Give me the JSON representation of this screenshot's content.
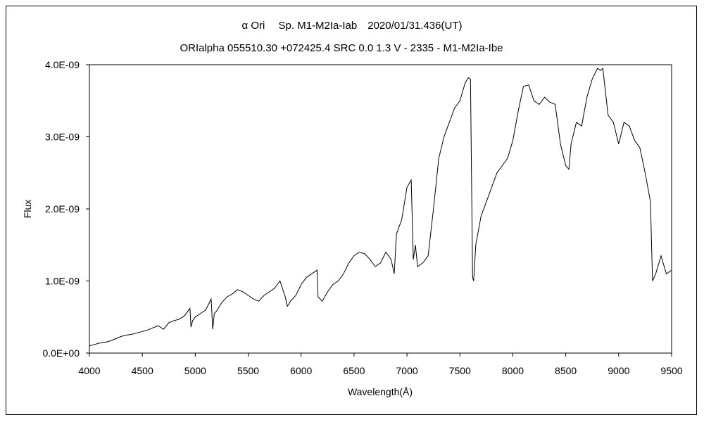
{
  "chart_data": {
    "type": "line",
    "title": "α Ori　 Sp. M1-M2Ia-Iab　2020/01/31.436(UT)",
    "subtitle": "ORIalpha 055510.30 +072425.4 SRC 0.0 1.3 V - 2335 - M1-M2Ia-Ibe",
    "xlabel": "Wavelength(Å)",
    "ylabel": "Flux",
    "xlim": [
      4000,
      9500
    ],
    "ylim": [
      0,
      4e-09
    ],
    "grid": false,
    "legend": "none",
    "line_color": "#000000",
    "x_ticks": [
      {
        "value": 4000,
        "label": "4000"
      },
      {
        "value": 4500,
        "label": "4500"
      },
      {
        "value": 5000,
        "label": "5000"
      },
      {
        "value": 5500,
        "label": "5500"
      },
      {
        "value": 6000,
        "label": "6000"
      },
      {
        "value": 6500,
        "label": "6500"
      },
      {
        "value": 7000,
        "label": "7000"
      },
      {
        "value": 7500,
        "label": "7500"
      },
      {
        "value": 8000,
        "label": "8000"
      },
      {
        "value": 8500,
        "label": "8500"
      },
      {
        "value": 9000,
        "label": "9000"
      },
      {
        "value": 9500,
        "label": "9500"
      }
    ],
    "y_ticks": [
      {
        "value": 0,
        "label": "0.0E+00"
      },
      {
        "value": 1e-09,
        "label": "1.0E-09"
      },
      {
        "value": 2e-09,
        "label": "2.0E-09"
      },
      {
        "value": 3e-09,
        "label": "3.0E-09"
      },
      {
        "value": 4e-09,
        "label": "4.0E-09"
      }
    ],
    "series": [
      {
        "x": [
          4000,
          4050,
          4100,
          4150,
          4200,
          4250,
          4300,
          4350,
          4400,
          4450,
          4500,
          4550,
          4600,
          4650,
          4700,
          4750,
          4800,
          4850,
          4900,
          4950,
          4960,
          4975,
          5000,
          5050,
          5100,
          5150,
          5165,
          5180,
          5200,
          5250,
          5300,
          5350,
          5400,
          5450,
          5500,
          5550,
          5600,
          5650,
          5700,
          5750,
          5800,
          5850,
          5870,
          5900,
          5950,
          6000,
          6050,
          6100,
          6150,
          6160,
          6200,
          6250,
          6300,
          6350,
          6400,
          6450,
          6500,
          6550,
          6600,
          6650,
          6700,
          6750,
          6800,
          6850,
          6880,
          6900,
          6950,
          7000,
          7040,
          7060,
          7080,
          7100,
          7150,
          7200,
          7250,
          7300,
          7350,
          7400,
          7450,
          7500,
          7550,
          7580,
          7600,
          7620,
          7630,
          7650,
          7700,
          7750,
          7800,
          7850,
          7900,
          7950,
          8000,
          8050,
          8100,
          8150,
          8200,
          8250,
          8300,
          8350,
          8400,
          8450,
          8500,
          8530,
          8550,
          8600,
          8650,
          8700,
          8750,
          8800,
          8830,
          8850,
          8900,
          8950,
          9000,
          9050,
          9100,
          9150,
          9200,
          9250,
          9300,
          9320,
          9350,
          9400,
          9450,
          9500
        ],
        "y": [
          1e-10,
          1.2e-10,
          1.4e-10,
          1.5e-10,
          1.7e-10,
          2e-10,
          2.3e-10,
          2.5e-10,
          2.6e-10,
          2.8e-10,
          3e-10,
          3.2e-10,
          3.5e-10,
          3.8e-10,
          3.3e-10,
          4.2e-10,
          4.5e-10,
          4.7e-10,
          5.2e-10,
          6.2e-10,
          3.6e-10,
          4.5e-10,
          5e-10,
          5.5e-10,
          6e-10,
          7.5e-10,
          3.3e-10,
          5.5e-10,
          5.8e-10,
          7e-10,
          7.8e-10,
          8.2e-10,
          8.8e-10,
          8.5e-10,
          8e-10,
          7.5e-10,
          7.2e-10,
          8e-10,
          8.5e-10,
          9e-10,
          1e-09,
          7.8e-10,
          6.5e-10,
          7.2e-10,
          8e-10,
          9.5e-10,
          1.05e-09,
          1.1e-09,
          1.15e-09,
          7.8e-10,
          7.2e-10,
          8.5e-10,
          9.5e-10,
          1e-09,
          1.1e-09,
          1.25e-09,
          1.35e-09,
          1.4e-09,
          1.38e-09,
          1.3e-09,
          1.2e-09,
          1.25e-09,
          1.4e-09,
          1.3e-09,
          1.1e-09,
          1.65e-09,
          1.85e-09,
          2.3e-09,
          2.4e-09,
          1.3e-09,
          1.5e-09,
          1.2e-09,
          1.25e-09,
          1.35e-09,
          2e-09,
          2.7e-09,
          3e-09,
          3.2e-09,
          3.4e-09,
          3.5e-09,
          3.75e-09,
          3.82e-09,
          3.8e-09,
          1.05e-09,
          1e-09,
          1.5e-09,
          1.9e-09,
          2.1e-09,
          2.3e-09,
          2.5e-09,
          2.6e-09,
          2.7e-09,
          2.95e-09,
          3.35e-09,
          3.7e-09,
          3.72e-09,
          3.5e-09,
          3.45e-09,
          3.55e-09,
          3.48e-09,
          3.45e-09,
          2.9e-09,
          2.6e-09,
          2.55e-09,
          2.9e-09,
          3.2e-09,
          3.15e-09,
          3.55e-09,
          3.8e-09,
          3.95e-09,
          3.92e-09,
          3.95e-09,
          3.3e-09,
          3.2e-09,
          2.9e-09,
          3.2e-09,
          3.15e-09,
          2.95e-09,
          2.85e-09,
          2.5e-09,
          2.1e-09,
          1e-09,
          1.1e-09,
          1.35e-09,
          1.1e-09,
          1.15e-09
        ]
      }
    ]
  }
}
